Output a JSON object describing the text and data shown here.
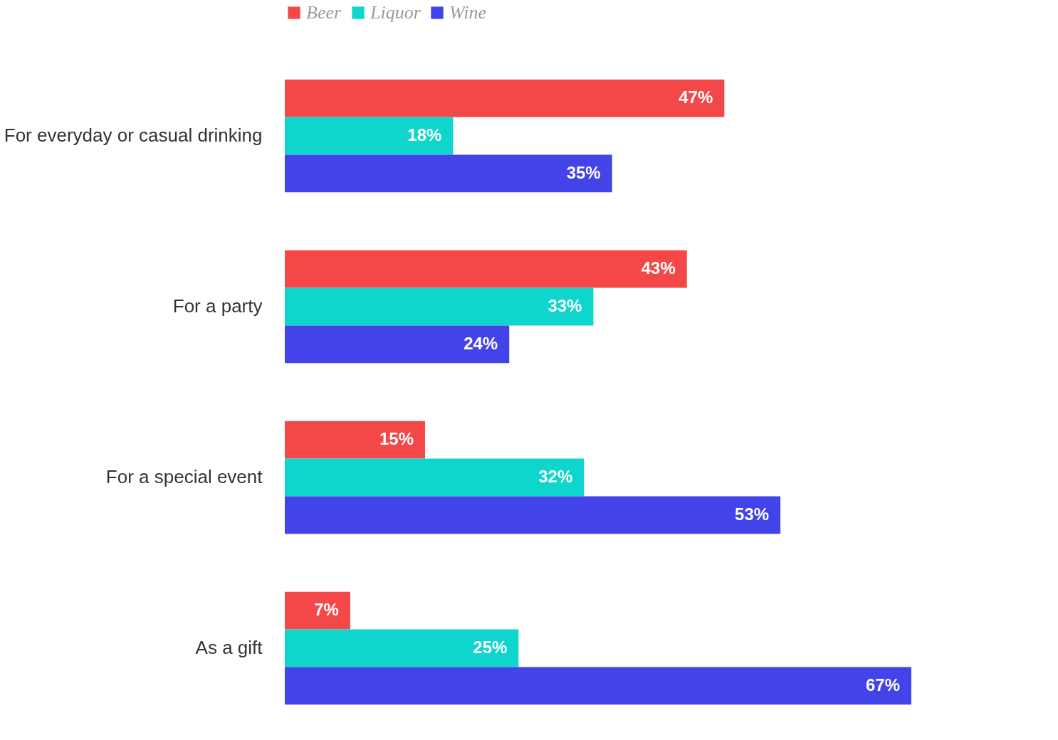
{
  "chart_data": {
    "type": "bar",
    "orientation": "horizontal",
    "legend": "top",
    "grid": false,
    "categories": [
      "For everyday or casual drinking",
      "For a party",
      "For a special event",
      "As a gift"
    ],
    "series": [
      {
        "name": "Beer",
        "color": "#f44848",
        "values": [
          47,
          43,
          15,
          7
        ],
        "value_labels": [
          "47%",
          "43%",
          "15%",
          "7%"
        ]
      },
      {
        "name": "Liquor",
        "color": "#0fd6cc",
        "values": [
          18,
          33,
          32,
          25
        ],
        "value_labels": [
          "18%",
          "33%",
          "32%",
          "25%"
        ]
      },
      {
        "name": "Wine",
        "color": "#4343ea",
        "values": [
          35,
          24,
          53,
          67
        ],
        "value_labels": [
          "35%",
          "24%",
          "53%",
          "67%"
        ]
      }
    ]
  }
}
